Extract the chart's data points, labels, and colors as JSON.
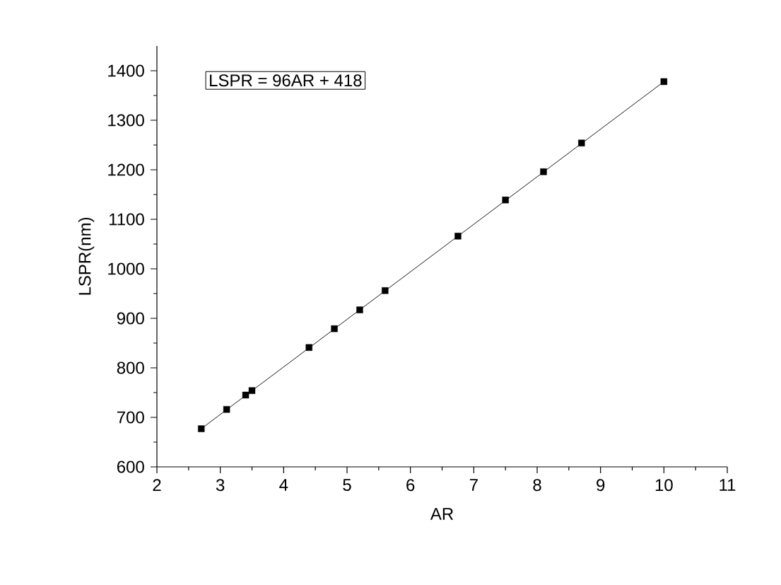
{
  "chart_data": {
    "type": "scatter",
    "xlabel": "AR",
    "ylabel": "LSPR(nm)",
    "annotations": [
      "LSPR = 96AR + 418"
    ],
    "series": [
      {
        "color": "#000000",
        "marker": "square",
        "x": [
          2.7,
          3.1,
          3.4,
          3.5,
          4.4,
          4.8,
          5.2,
          5.6,
          6.75,
          7.5,
          8.1,
          8.7,
          10.0
        ],
        "values": [
          677,
          716,
          745,
          754,
          841,
          879,
          917,
          956,
          1066,
          1139,
          1196,
          1254,
          1378
        ]
      },
      {
        "type": "line",
        "color": "#000000",
        "marker": "none",
        "line_style": "solid",
        "x": [
          2.7,
          10.0
        ],
        "values": [
          677,
          1378
        ]
      }
    ],
    "xlim": [
      2,
      11
    ],
    "ylim": [
      600,
      1450
    ],
    "xticks": [
      2,
      3,
      4,
      5,
      6,
      7,
      8,
      9,
      10,
      11
    ],
    "yticks": [
      600,
      700,
      800,
      900,
      1000,
      1100,
      1200,
      1300,
      1400
    ],
    "grid": false
  }
}
